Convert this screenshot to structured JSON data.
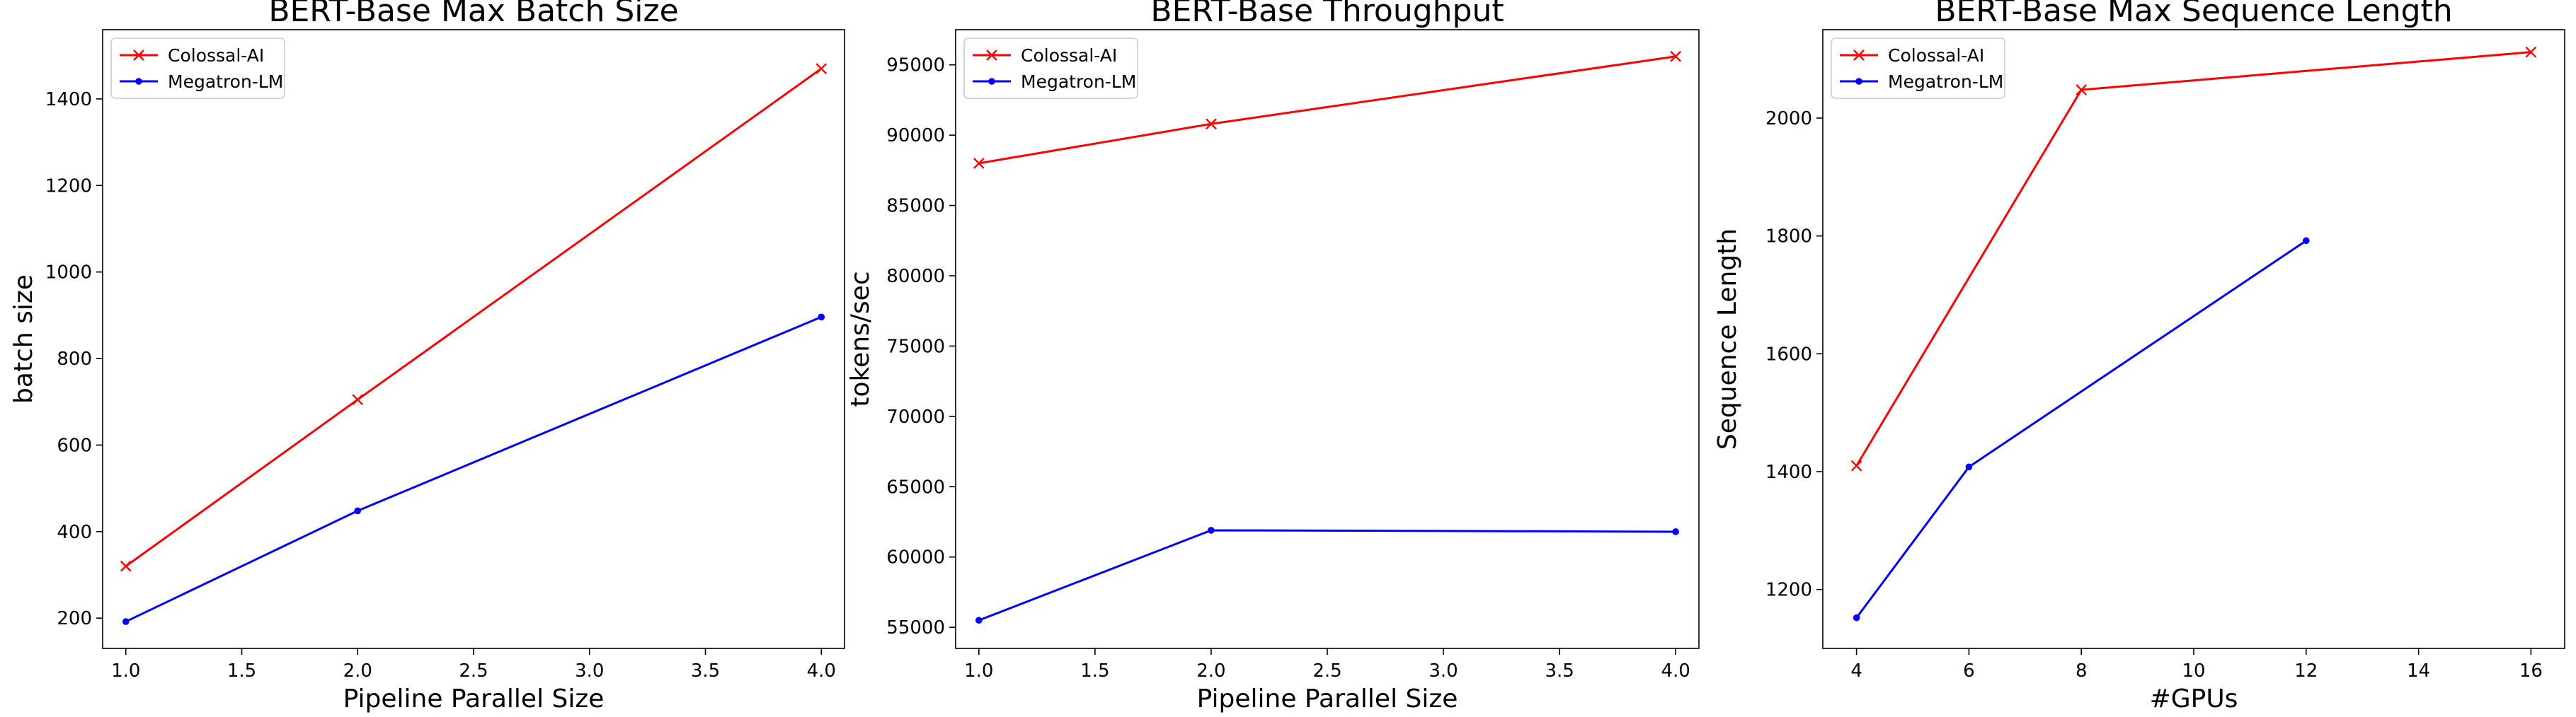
{
  "chart_data": [
    {
      "type": "line",
      "title": "BERT-Base Max Batch Size",
      "xlabel": "Pipeline Parallel Size",
      "ylabel": "batch size",
      "xlim": [
        0.9,
        4.1
      ],
      "ylim": [
        130,
        1560
      ],
      "xticks": [
        1.0,
        1.5,
        2.0,
        2.5,
        3.0,
        3.5,
        4.0
      ],
      "xtick_labels": [
        "1.0",
        "1.5",
        "2.0",
        "2.5",
        "3.0",
        "3.5",
        "4.0"
      ],
      "yticks": [
        200,
        400,
        600,
        800,
        1000,
        1200,
        1400
      ],
      "ytick_labels": [
        "200",
        "400",
        "600",
        "800",
        "1000",
        "1200",
        "1400"
      ],
      "legend": "top-left",
      "grid": false,
      "series": [
        {
          "name": "Colossal-AI",
          "color": "#ff0000",
          "marker": "x",
          "x": [
            1,
            2,
            4
          ],
          "y": [
            320,
            705,
            1470
          ]
        },
        {
          "name": "Megatron-LM",
          "color": "#0000ff",
          "marker": "dot",
          "x": [
            1,
            2,
            4
          ],
          "y": [
            192,
            448,
            896
          ]
        }
      ]
    },
    {
      "type": "line",
      "title": "BERT-Base Throughput",
      "xlabel": "Pipeline Parallel Size",
      "ylabel": "tokens/sec",
      "xlim": [
        0.9,
        4.1
      ],
      "ylim": [
        53500,
        97500
      ],
      "xticks": [
        1.0,
        1.5,
        2.0,
        2.5,
        3.0,
        3.5,
        4.0
      ],
      "xtick_labels": [
        "1.0",
        "1.5",
        "2.0",
        "2.5",
        "3.0",
        "3.5",
        "4.0"
      ],
      "yticks": [
        55000,
        60000,
        65000,
        70000,
        75000,
        80000,
        85000,
        90000,
        95000
      ],
      "ytick_labels": [
        "55000",
        "60000",
        "65000",
        "70000",
        "75000",
        "80000",
        "85000",
        "90000",
        "95000"
      ],
      "legend": "top-left",
      "grid": false,
      "series": [
        {
          "name": "Colossal-AI",
          "color": "#ff0000",
          "marker": "x",
          "x": [
            1,
            2,
            4
          ],
          "y": [
            88000,
            90800,
            95600
          ]
        },
        {
          "name": "Megatron-LM",
          "color": "#0000ff",
          "marker": "dot",
          "x": [
            1,
            2,
            4
          ],
          "y": [
            55500,
            61900,
            61800
          ]
        }
      ]
    },
    {
      "type": "line",
      "title": "BERT-Base Max Sequence Length",
      "xlabel": "#GPUs",
      "ylabel": "Sequence Length",
      "xlim": [
        3.4,
        16.6
      ],
      "ylim": [
        1100,
        2150
      ],
      "xticks": [
        4,
        6,
        8,
        10,
        12,
        14,
        16
      ],
      "xtick_labels": [
        "4",
        "6",
        "8",
        "10",
        "12",
        "14",
        "16"
      ],
      "yticks": [
        1200,
        1400,
        1600,
        1800,
        2000
      ],
      "ytick_labels": [
        "1200",
        "1400",
        "1600",
        "1800",
        "2000"
      ],
      "legend": "top-left",
      "grid": false,
      "series": [
        {
          "name": "Colossal-AI",
          "color": "#ff0000",
          "marker": "x",
          "x": [
            4,
            8,
            16
          ],
          "y": [
            1410,
            2048,
            2112
          ]
        },
        {
          "name": "Megatron-LM",
          "color": "#0000ff",
          "marker": "dot",
          "x": [
            4,
            6,
            12
          ],
          "y": [
            1152,
            1408,
            1792
          ]
        }
      ]
    }
  ]
}
